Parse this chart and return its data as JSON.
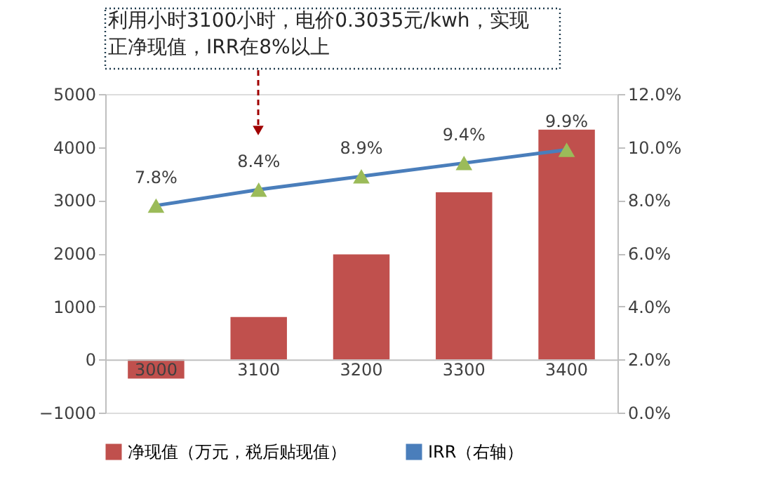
{
  "chart_data": {
    "type": "bar",
    "categories": [
      "3000",
      "3100",
      "3200",
      "3300",
      "3400"
    ],
    "series": [
      {
        "name": "净现值（万元，税后贴现值）",
        "color": "#c0504d",
        "values": [
          -360,
          800,
          1980,
          3150,
          4330
        ]
      },
      {
        "name": "IRR（右轴）",
        "type": "line",
        "axis": "y2",
        "color": "#4a7ebb",
        "marker": "triangle",
        "values": [
          7.8,
          8.4,
          8.9,
          9.4,
          9.9
        ],
        "value_labels": [
          "7.8%",
          "8.4%",
          "8.9%",
          "9.4%",
          "9.9%"
        ]
      }
    ],
    "ylim": [
      -1000,
      5000
    ],
    "yticks": [
      -1000,
      0,
      1000,
      2000,
      3000,
      4000,
      5000
    ],
    "y2lim": [
      0,
      12
    ],
    "y2ticks": [
      {
        "value": 0,
        "label": "0.0%"
      },
      {
        "value": 2,
        "label": "2.0%"
      },
      {
        "value": 4,
        "label": "4.0%"
      },
      {
        "value": 6,
        "label": "6.0%"
      },
      {
        "value": 8,
        "label": "8.0%"
      },
      {
        "value": 10,
        "label": "10.0%"
      },
      {
        "value": 12,
        "label": "12.0%"
      }
    ],
    "annotations": [
      "利用小时3100小时，电价0.3035元/kwh，实现正净现值，IRR在8%以上"
    ],
    "grid": false,
    "legend": "bottom"
  }
}
